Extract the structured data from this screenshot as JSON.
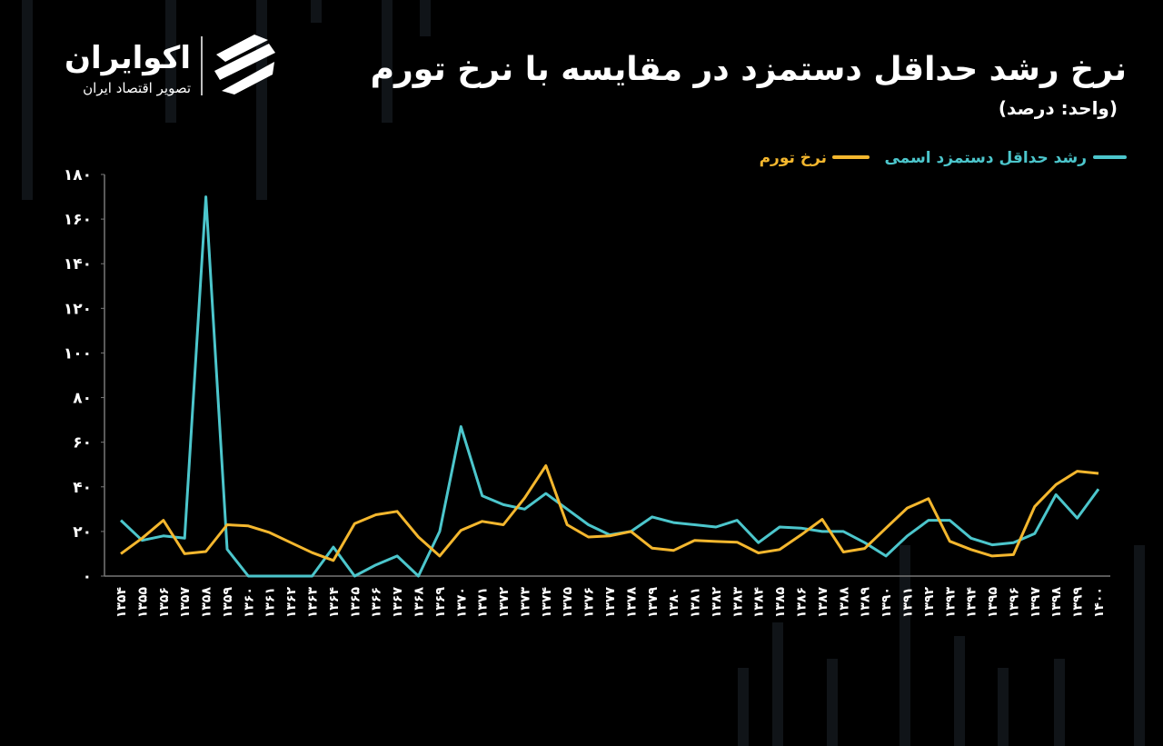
{
  "chart_data": {
    "type": "line",
    "title": "نرخ رشد حداقل دستمزد در مقایسه با نرخ تورم",
    "subtitle": "(واحد: درصد)",
    "brand": {
      "name": "اکوایران",
      "tagline": "تصویر اقتصاد ایران"
    },
    "categories": [
      "۱۳۵۴",
      "۱۳۵۵",
      "۱۳۵۶",
      "۱۳۵۷",
      "۱۳۵۸",
      "۱۳۵۹",
      "۱۳۶۰",
      "۱۳۶۱",
      "۱۳۶۲",
      "۱۳۶۳",
      "۱۳۶۴",
      "۱۳۶۵",
      "۱۳۶۶",
      "۱۳۶۷",
      "۱۳۶۸",
      "۱۳۶۹",
      "۱۳۷۰",
      "۱۳۷۱",
      "۱۳۷۲",
      "۱۳۷۳",
      "۱۳۷۴",
      "۱۳۷۵",
      "۱۳۷۶",
      "۱۳۷۷",
      "۱۳۷۸",
      "۱۳۷۹",
      "۱۳۸۰",
      "۱۳۸۱",
      "۱۳۸۲",
      "۱۳۸۳",
      "۱۳۸۴",
      "۱۳۸۵",
      "۱۳۸۶",
      "۱۳۸۷",
      "۱۳۸۸",
      "۱۳۸۹",
      "۱۳۹۰",
      "۱۳۹۱",
      "۱۳۹۲",
      "۱۳۹۳",
      "۱۳۹۴",
      "۱۳۹۵",
      "۱۳۹۶",
      "۱۳۹۷",
      "۱۳۹۸",
      "۱۳۹۹",
      "۱۴۰۰"
    ],
    "series": [
      {
        "name": "رشد حداقل دستمزد اسمی",
        "color": "#4cc6cc",
        "values": [
          25,
          16,
          18,
          17,
          170,
          12,
          0,
          0,
          0,
          0,
          13,
          0,
          5,
          9,
          0,
          20,
          67,
          36,
          32,
          30,
          37,
          30,
          23,
          18.5,
          20,
          26.5,
          24,
          23,
          22,
          25,
          15,
          22,
          21.5,
          20,
          20,
          15,
          9,
          18,
          25,
          25,
          17,
          14,
          15,
          19,
          36.5,
          26,
          39
        ]
      },
      {
        "name": "نرخ تورم",
        "color": "#f4b72e",
        "values": [
          10,
          17,
          25,
          10,
          11,
          23,
          22.5,
          19.5,
          15,
          10.5,
          7,
          23.5,
          27.5,
          29,
          17.5,
          9,
          20.5,
          24.5,
          23,
          35,
          49.5,
          23,
          17.5,
          18,
          20,
          12.5,
          11.5,
          16,
          15.5,
          15.2,
          10.4,
          11.9,
          18.4,
          25.4,
          10.8,
          12.4,
          21.5,
          30.5,
          34.7,
          15.6,
          11.9,
          9,
          9.6,
          31.2,
          41,
          47,
          46
        ]
      }
    ],
    "ylim": [
      0,
      180
    ],
    "yticks": [
      {
        "value": 0,
        "label": "۰"
      },
      {
        "value": 20,
        "label": "۲۰"
      },
      {
        "value": 40,
        "label": "۴۰"
      },
      {
        "value": 60,
        "label": "۶۰"
      },
      {
        "value": 80,
        "label": "۸۰"
      },
      {
        "value": 100,
        "label": "۱۰۰"
      },
      {
        "value": 120,
        "label": "۱۲۰"
      },
      {
        "value": 140,
        "label": "۱۴۰"
      },
      {
        "value": 160,
        "label": "۱۶۰"
      },
      {
        "value": 180,
        "label": "۱۸۰"
      }
    ],
    "grid": false
  }
}
